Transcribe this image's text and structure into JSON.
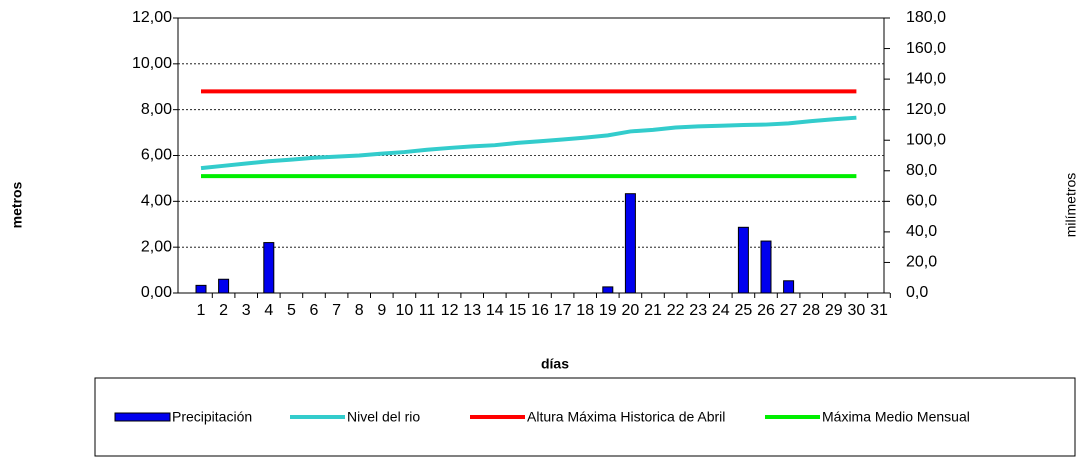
{
  "chart_data": {
    "type": "bar-line",
    "x_label": "días",
    "y_label": "metros",
    "y2_label": "milímetros",
    "categories": [
      "1",
      "2",
      "3",
      "4",
      "5",
      "6",
      "7",
      "8",
      "9",
      "10",
      "11",
      "12",
      "13",
      "14",
      "15",
      "16",
      "17",
      "18",
      "19",
      "20",
      "21",
      "22",
      "23",
      "24",
      "25",
      "26",
      "27",
      "28",
      "29",
      "30",
      "31"
    ],
    "series": [
      {
        "name": "Precipitación",
        "kind": "bar",
        "axis": "y2",
        "color": "#0000ee",
        "values": [
          5,
          9,
          null,
          33,
          null,
          null,
          null,
          null,
          null,
          null,
          null,
          null,
          null,
          null,
          null,
          null,
          null,
          null,
          4,
          65,
          null,
          null,
          null,
          null,
          43,
          34,
          8,
          null,
          null,
          null,
          null
        ]
      },
      {
        "name": "Nivel del rio",
        "kind": "line",
        "color": "#33cccc",
        "values": [
          5.45,
          5.55,
          5.65,
          5.75,
          5.82,
          5.9,
          5.95,
          6.0,
          6.08,
          6.15,
          6.25,
          6.33,
          6.4,
          6.45,
          6.55,
          6.62,
          6.7,
          6.78,
          6.88,
          7.05,
          7.12,
          7.22,
          7.27,
          7.3,
          7.33,
          7.35,
          7.4,
          7.5,
          7.58,
          7.65,
          null
        ]
      },
      {
        "name": "Altura Máxima Historica de Abril",
        "kind": "line",
        "color": "#ff0000",
        "values": [
          8.8,
          8.8,
          8.8,
          8.8,
          8.8,
          8.8,
          8.8,
          8.8,
          8.8,
          8.8,
          8.8,
          8.8,
          8.8,
          8.8,
          8.8,
          8.8,
          8.8,
          8.8,
          8.8,
          8.8,
          8.8,
          8.8,
          8.8,
          8.8,
          8.8,
          8.8,
          8.8,
          8.8,
          8.8,
          8.8,
          null
        ]
      },
      {
        "name": "Máxima Medio Mensual",
        "kind": "line",
        "color": "#00ee00",
        "values": [
          5.1,
          5.1,
          5.1,
          5.1,
          5.1,
          5.1,
          5.1,
          5.1,
          5.1,
          5.1,
          5.1,
          5.1,
          5.1,
          5.1,
          5.1,
          5.1,
          5.1,
          5.1,
          5.1,
          5.1,
          5.1,
          5.1,
          5.1,
          5.1,
          5.1,
          5.1,
          5.1,
          5.1,
          5.1,
          5.1,
          null
        ]
      }
    ],
    "ylim": [
      0,
      12
    ],
    "yticks": [
      {
        "value": 0,
        "label": "0,00"
      },
      {
        "value": 2,
        "label": "2,00"
      },
      {
        "value": 4,
        "label": "4,00"
      },
      {
        "value": 6,
        "label": "6,00"
      },
      {
        "value": 8,
        "label": "8,00"
      },
      {
        "value": 10,
        "label": "10,00"
      },
      {
        "value": 12,
        "label": "12,00"
      }
    ],
    "y2lim": [
      0,
      180
    ],
    "y2ticks": [
      {
        "value": 0,
        "label": "0,0"
      },
      {
        "value": 20,
        "label": "20,0"
      },
      {
        "value": 40,
        "label": "40,0"
      },
      {
        "value": 60,
        "label": "60,0"
      },
      {
        "value": 80,
        "label": "80,0"
      },
      {
        "value": 100,
        "label": "100,0"
      },
      {
        "value": 120,
        "label": "120,0"
      },
      {
        "value": 140,
        "label": "140,0"
      },
      {
        "value": 160,
        "label": "160,0"
      },
      {
        "value": 180,
        "label": "180,0"
      }
    ],
    "grid": true,
    "legend": "bottom"
  }
}
